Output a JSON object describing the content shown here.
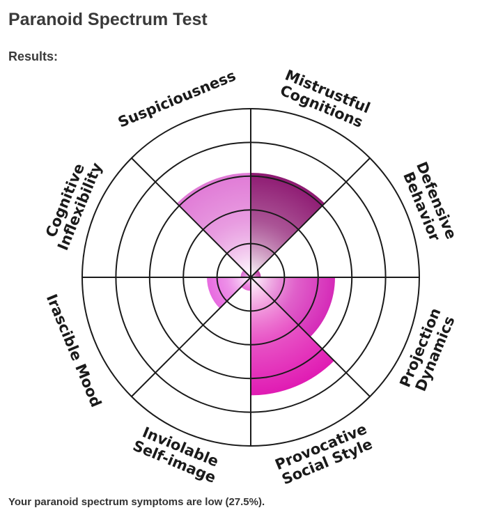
{
  "page": {
    "title": "Paranoid Spectrum Test",
    "results_label": "Results:",
    "summary": "Your paranoid spectrum symptoms are low (27.5%)."
  },
  "chart_data": {
    "type": "polar-area",
    "max": 5,
    "rings": 5,
    "categories": [
      {
        "lines": [
          "Mistrustful",
          "Cognitions"
        ],
        "value": 3.1,
        "color": "#8e1a72"
      },
      {
        "lines": [
          "Defensive",
          "Behavior"
        ],
        "value": 0.3,
        "color": "#c23aa6"
      },
      {
        "lines": [
          "Projection",
          "Dynamics"
        ],
        "value": 2.5,
        "color": "#d52bb8"
      },
      {
        "lines": [
          "Provocative",
          "Social Style"
        ],
        "value": 3.5,
        "color": "#e01bb3"
      },
      {
        "lines": [
          "Inviolable",
          "Self-image"
        ],
        "value": 0.4,
        "color": "#e86ad8"
      },
      {
        "lines": [
          "Irascible Mood"
        ],
        "value": 1.3,
        "color": "#e76be0"
      },
      {
        "lines": [
          "Cognitive",
          "Inflexibility"
        ],
        "value": 0.3,
        "color": "#d76bcf"
      },
      {
        "lines": [
          "Suspiciousness"
        ],
        "value": 3.1,
        "color": "#e07ad6"
      }
    ]
  }
}
